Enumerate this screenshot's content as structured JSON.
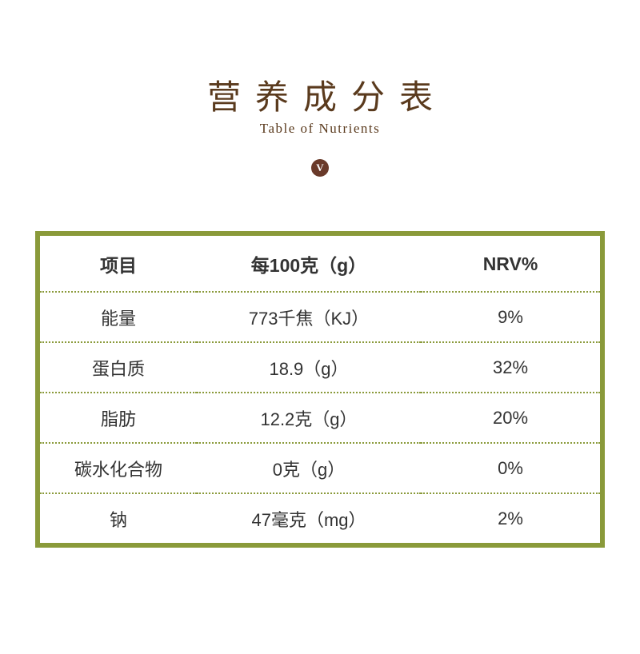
{
  "title": {
    "cn": "营养成分表",
    "en": "Table of Nutrients",
    "color": "#5a3a1d"
  },
  "badge": {
    "text": "V",
    "bg_color": "#6a3a2a"
  },
  "table": {
    "border_color": "#8a9a3a",
    "dotted_color": "#8a9a3a",
    "text_color": "#333333",
    "headers": [
      "项目",
      "每100克（g）",
      "NRV%"
    ],
    "rows": [
      [
        "能量",
        "773千焦（KJ）",
        "9%"
      ],
      [
        "蛋白质",
        "18.9（g）",
        "32%"
      ],
      [
        "脂肪",
        "12.2克（g）",
        "20%"
      ],
      [
        "碳水化合物",
        "0克（g）",
        "0%"
      ],
      [
        "钠",
        "47毫克（mg）",
        "2%"
      ]
    ]
  }
}
